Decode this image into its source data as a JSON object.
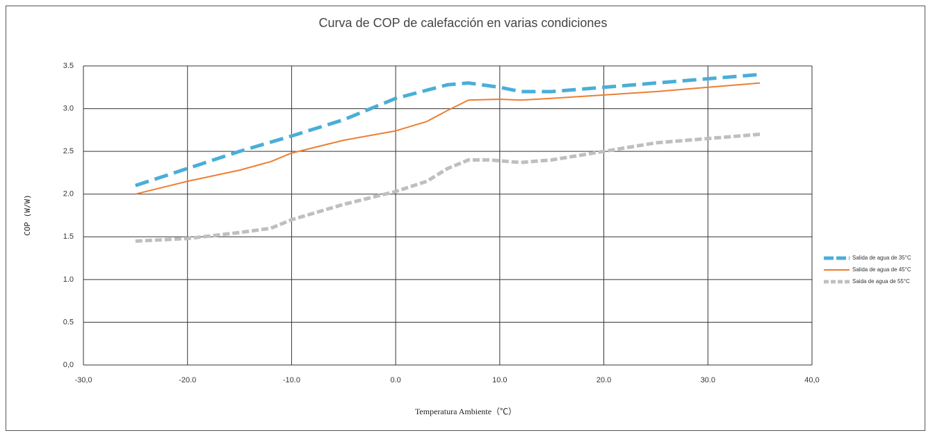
{
  "chart_data": {
    "type": "line",
    "title": "Curva de COP de calefacción en varias condiciones",
    "x_label": "Temperatura Ambiente（℃）",
    "y_label": "COP (W/W)",
    "xlim": [
      -30,
      40
    ],
    "xticks": [
      {
        "value": -30,
        "label": "-30,0"
      },
      {
        "value": -20,
        "label": "-20.0"
      },
      {
        "value": -10,
        "label": "-10.0"
      },
      {
        "value": 0,
        "label": "0.0"
      },
      {
        "value": 10,
        "label": "10.0"
      },
      {
        "value": 20,
        "label": "20.0"
      },
      {
        "value": 30,
        "label": "30.0"
      },
      {
        "value": 40,
        "label": "40,0"
      }
    ],
    "ylim": [
      0,
      3.5
    ],
    "yticks": [
      {
        "value": 0,
        "label": "0,0"
      },
      {
        "value": 0.5,
        "label": "0.5"
      },
      {
        "value": 1,
        "label": "1.0"
      },
      {
        "value": 1.5,
        "label": "1.5"
      },
      {
        "value": 2,
        "label": "2.0"
      },
      {
        "value": 2.5,
        "label": "2.5"
      },
      {
        "value": 3,
        "label": "3.0"
      },
      {
        "value": 3.5,
        "label": "3.5"
      }
    ],
    "grid": true,
    "legend": "right",
    "series": [
      {
        "name": "Salida de agua de 35°C",
        "color": "#4aaed8",
        "line_style": "dashed",
        "x": [
          -25,
          -20,
          -15,
          -10,
          -5,
          0,
          5,
          7,
          10,
          12,
          15,
          20,
          25,
          30,
          35
        ],
        "values": [
          2.1,
          2.3,
          2.5,
          2.68,
          2.87,
          3.12,
          3.28,
          3.3,
          3.25,
          3.2,
          3.2,
          3.25,
          3.3,
          3.35,
          3.4
        ]
      },
      {
        "name": "Salida de agua de 45°C",
        "color": "#ed7d31",
        "line_style": "solid",
        "x": [
          -25,
          -20,
          -15,
          -12,
          -10,
          -5,
          0,
          3,
          5,
          7,
          10,
          12,
          15,
          20,
          25,
          30,
          35
        ],
        "values": [
          2.0,
          2.15,
          2.28,
          2.38,
          2.48,
          2.63,
          2.74,
          2.85,
          2.98,
          3.1,
          3.11,
          3.1,
          3.12,
          3.16,
          3.2,
          3.25,
          3.3
        ]
      },
      {
        "name": "Saida de agua de 55°C",
        "color": "#bfbfbf",
        "line_style": "dotted",
        "x": [
          -25,
          -20,
          -15,
          -12,
          -10,
          -5,
          0,
          3,
          5,
          7,
          9,
          12,
          15,
          20,
          25,
          30,
          35
        ],
        "values": [
          1.45,
          1.48,
          1.55,
          1.6,
          1.7,
          1.88,
          2.03,
          2.15,
          2.3,
          2.4,
          2.4,
          2.37,
          2.4,
          2.5,
          2.6,
          2.65,
          2.7
        ]
      }
    ]
  }
}
